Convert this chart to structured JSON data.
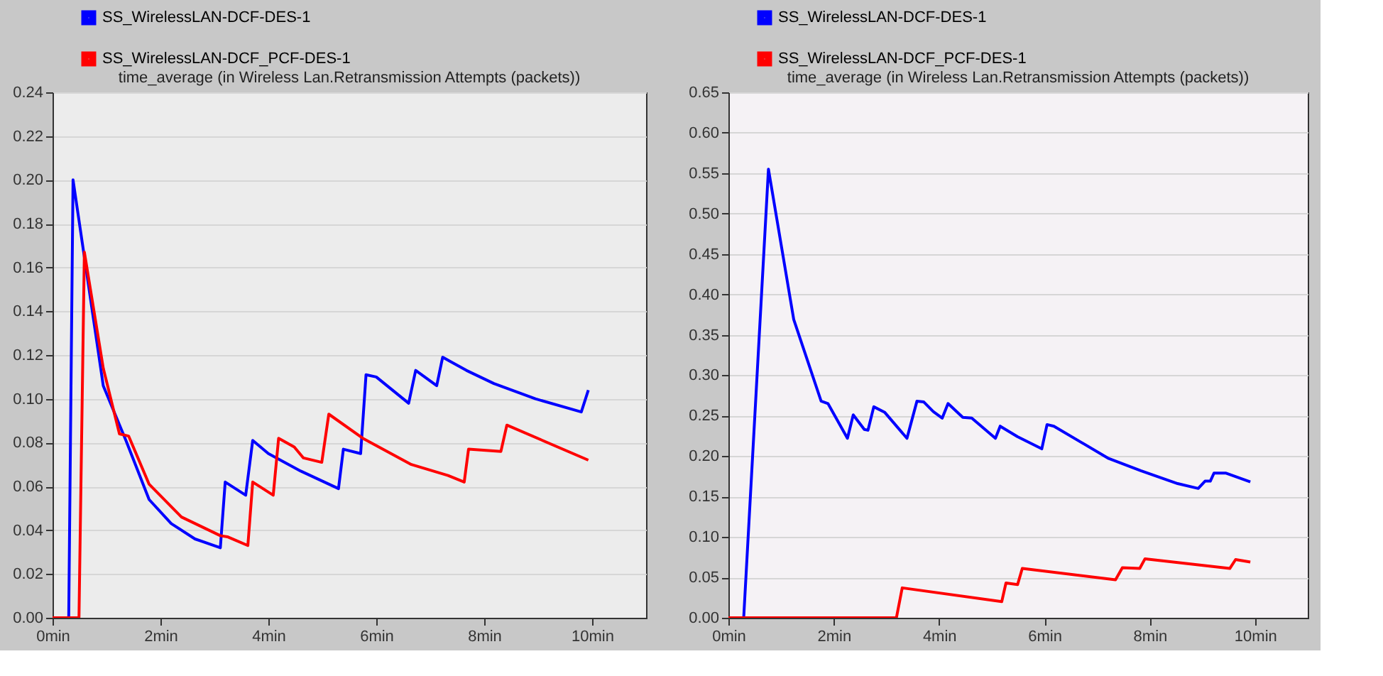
{
  "chart_data": [
    {
      "type": "line",
      "title": "time_average (in Wireless Lan.Retransmission Attempts (packets))",
      "xlim": [
        0,
        11
      ],
      "xticks": [
        {
          "value": 0,
          "label": "0min"
        },
        {
          "value": 2,
          "label": "2min"
        },
        {
          "value": 4,
          "label": "4min"
        },
        {
          "value": 6,
          "label": "6min"
        },
        {
          "value": 8,
          "label": "8min"
        },
        {
          "value": 10,
          "label": "10min"
        }
      ],
      "ylim": [
        0,
        0.24
      ],
      "yticks": [
        {
          "value": 0,
          "label": "0.00"
        },
        {
          "value": 0.02,
          "label": "0.02"
        },
        {
          "value": 0.04,
          "label": "0.04"
        },
        {
          "value": 0.06,
          "label": "0.06"
        },
        {
          "value": 0.08,
          "label": "0.08"
        },
        {
          "value": 0.1,
          "label": "0.10"
        },
        {
          "value": 0.12,
          "label": "0.12"
        },
        {
          "value": 0.14,
          "label": "0.14"
        },
        {
          "value": 0.16,
          "label": "0.16"
        },
        {
          "value": 0.18,
          "label": "0.18"
        },
        {
          "value": 0.2,
          "label": "0.20"
        },
        {
          "value": 0.22,
          "label": "0.22"
        },
        {
          "value": 0.24,
          "label": "0.24"
        }
      ],
      "grid": "y",
      "legend": "top",
      "line_style": "solid",
      "marker": "none",
      "series": [
        {
          "name": "SS_WirelessLAN-DCF-DES-1",
          "color": "#0000ff",
          "x": [
            0,
            0.3,
            0.38,
            0.94,
            1.36,
            1.79,
            2.2,
            2.64,
            3.11,
            3.2,
            3.58,
            3.71,
            4.0,
            4.6,
            5.3,
            5.39,
            5.71,
            5.81,
            6.0,
            6.6,
            6.73,
            7.12,
            7.23,
            7.67,
            8.18,
            8.95,
            9.8,
            9.93
          ],
          "values": [
            0,
            0,
            0.2,
            0.106,
            0.081,
            0.054,
            0.043,
            0.036,
            0.032,
            0.062,
            0.056,
            0.081,
            0.075,
            0.067,
            0.059,
            0.077,
            0.075,
            0.111,
            0.11,
            0.098,
            0.113,
            0.106,
            0.119,
            0.113,
            0.107,
            0.1,
            0.094,
            0.104
          ]
        },
        {
          "name": "SS_WirelessLAN-DCF_PCF-DES-1",
          "color": "#ff0000",
          "x": [
            0,
            0.49,
            0.59,
            0.94,
            1.24,
            1.41,
            1.79,
            2.39,
            3.11,
            3.24,
            3.62,
            3.71,
            4.09,
            4.19,
            4.48,
            4.65,
            4.99,
            5.12,
            5.75,
            6.65,
            7.33,
            7.63,
            7.71,
            8.31,
            8.42,
            9.93
          ],
          "values": [
            0,
            0,
            0.167,
            0.114,
            0.084,
            0.083,
            0.061,
            0.046,
            0.0375,
            0.037,
            0.033,
            0.062,
            0.056,
            0.082,
            0.078,
            0.073,
            0.071,
            0.093,
            0.082,
            0.07,
            0.065,
            0.062,
            0.077,
            0.076,
            0.088,
            0.072
          ]
        }
      ]
    },
    {
      "type": "line",
      "title": "time_average (in Wireless Lan.Retransmission Attempts (packets))",
      "xlim": [
        0,
        11
      ],
      "xticks": [
        {
          "value": 0,
          "label": "0min"
        },
        {
          "value": 2,
          "label": "2min"
        },
        {
          "value": 4,
          "label": "4min"
        },
        {
          "value": 6,
          "label": "6min"
        },
        {
          "value": 8,
          "label": "8min"
        },
        {
          "value": 10,
          "label": "10min"
        }
      ],
      "ylim": [
        0,
        0.65
      ],
      "yticks": [
        {
          "value": 0,
          "label": "0.00"
        },
        {
          "value": 0.05,
          "label": "0.05"
        },
        {
          "value": 0.1,
          "label": "0.10"
        },
        {
          "value": 0.15,
          "label": "0.15"
        },
        {
          "value": 0.2,
          "label": "0.20"
        },
        {
          "value": 0.25,
          "label": "0.25"
        },
        {
          "value": 0.3,
          "label": "0.30"
        },
        {
          "value": 0.35,
          "label": "0.35"
        },
        {
          "value": 0.4,
          "label": "0.40"
        },
        {
          "value": 0.45,
          "label": "0.45"
        },
        {
          "value": 0.5,
          "label": "0.50"
        },
        {
          "value": 0.55,
          "label": "0.55"
        },
        {
          "value": 0.6,
          "label": "0.60"
        },
        {
          "value": 0.65,
          "label": "0.65"
        }
      ],
      "grid": "y",
      "legend": "top",
      "line_style": "solid",
      "marker": "none",
      "series": [
        {
          "name": "SS_WirelessLAN-DCF-DES-1",
          "color": "#0000ff",
          "x": [
            0,
            0.29,
            0.76,
            1.24,
            1.76,
            1.89,
            2.26,
            2.37,
            2.58,
            2.65,
            2.76,
            2.97,
            3.39,
            3.58,
            3.71,
            3.89,
            4.06,
            4.17,
            4.45,
            4.62,
            5.07,
            5.16,
            5.49,
            5.95,
            6.05,
            6.18,
            7.22,
            7.83,
            8.53,
            8.92,
            9.05,
            9.15,
            9.22,
            9.44,
            9.91
          ],
          "values": [
            0,
            0,
            0.555,
            0.369,
            0.268,
            0.265,
            0.222,
            0.251,
            0.233,
            0.232,
            0.261,
            0.254,
            0.222,
            0.268,
            0.267,
            0.255,
            0.247,
            0.265,
            0.248,
            0.247,
            0.222,
            0.237,
            0.224,
            0.209,
            0.239,
            0.237,
            0.197,
            0.182,
            0.166,
            0.16,
            0.169,
            0.169,
            0.179,
            0.179,
            0.168
          ]
        },
        {
          "name": "SS_WirelessLAN-DCF_PCF-DES-1",
          "color": "#ff0000",
          "x": [
            0,
            3.19,
            3.3,
            5.19,
            5.27,
            5.49,
            5.58,
            7.35,
            7.48,
            7.81,
            7.91,
            9.52,
            9.63,
            9.91
          ],
          "values": [
            0,
            0,
            0.037,
            0.02,
            0.043,
            0.041,
            0.061,
            0.047,
            0.062,
            0.061,
            0.073,
            0.061,
            0.072,
            0.069
          ]
        }
      ]
    }
  ]
}
